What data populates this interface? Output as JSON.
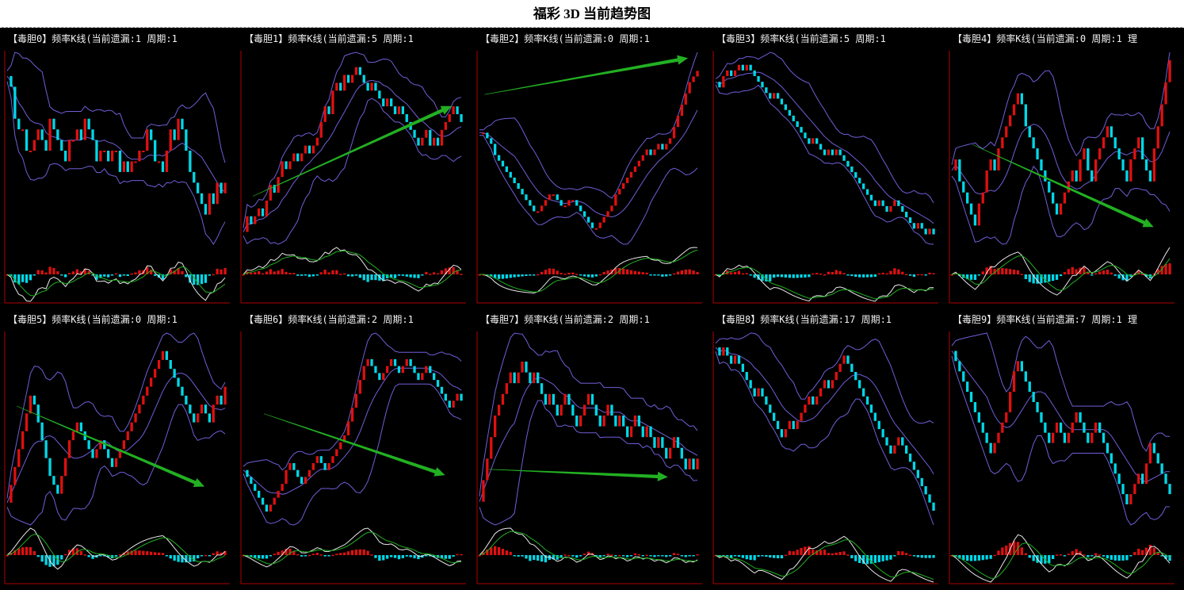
{
  "page_title": "福彩 3D 当前趋势图",
  "colors": {
    "background": "#000000",
    "axis": "#b00000",
    "candle_up": "#e01010",
    "candle_down": "#00d8e8",
    "band": "#6f5fd8",
    "ma_fast": "#e8e8e8",
    "ma_slow": "#20b020",
    "trend_arrow": "#22b022"
  },
  "chart_data": [
    {
      "type": "candlestick",
      "label": "毒胆0",
      "title": "【毒胆0】频率K线(当前遗漏:1 周期:1",
      "current_omission": 1,
      "period": 1,
      "close": [
        17,
        16,
        13,
        12,
        12,
        10,
        10,
        11,
        12,
        11,
        10,
        13,
        12,
        11,
        10,
        9,
        11,
        11,
        12,
        11,
        13,
        12,
        11,
        9,
        10,
        10,
        9,
        10,
        10,
        8,
        9,
        8,
        9,
        9,
        10,
        10,
        12,
        11,
        9,
        9,
        8,
        10,
        12,
        11,
        13,
        12,
        10,
        8,
        7,
        6,
        5,
        4,
        6,
        5,
        7,
        6,
        7
      ],
      "trend": null
    },
    {
      "type": "candlestick",
      "label": "毒胆1",
      "title": "【毒胆1】频率K线(当前遗漏:5 周期:1",
      "current_omission": 5,
      "period": 1,
      "close": [
        6,
        8,
        7,
        8,
        9,
        8,
        10,
        12,
        11,
        13,
        15,
        14,
        15,
        16,
        15,
        16,
        17,
        16,
        17,
        18,
        20,
        22,
        21,
        24,
        25,
        24,
        26,
        25,
        26,
        27,
        26,
        25,
        24,
        25,
        24,
        23,
        22,
        23,
        22,
        21,
        22,
        21,
        20,
        19,
        18,
        17,
        18,
        19,
        17,
        18,
        17,
        19,
        20,
        21,
        22,
        21,
        20
      ],
      "trend": [
        0.05,
        0.25,
        0.95,
        0.72
      ]
    },
    {
      "type": "candlestick",
      "label": "毒胆2",
      "title": "【毒胆2】频率K线(当前遗漏:0 周期:1",
      "current_omission": 0,
      "period": 1,
      "close": [
        20,
        20,
        19,
        18,
        16,
        15,
        14,
        13,
        12,
        11,
        10,
        9,
        8,
        7,
        6,
        6,
        7,
        8,
        9,
        9,
        8,
        7,
        7,
        8,
        8,
        7,
        6,
        5,
        4,
        3,
        3,
        4,
        5,
        6,
        7,
        9,
        10,
        11,
        12,
        13,
        14,
        15,
        16,
        17,
        16,
        17,
        18,
        17,
        18,
        19,
        21,
        23,
        25,
        27,
        29,
        30,
        31
      ],
      "trend": [
        0.03,
        0.78,
        0.95,
        0.97
      ]
    },
    {
      "type": "candlestick",
      "label": "毒胆3",
      "title": "【毒胆3】频率K线(当前遗漏:5 周期:1",
      "current_omission": 5,
      "period": 1,
      "close": [
        30,
        29,
        31,
        32,
        31,
        32,
        33,
        32,
        33,
        32,
        31,
        30,
        29,
        28,
        27,
        28,
        27,
        26,
        25,
        24,
        23,
        22,
        21,
        20,
        19,
        20,
        19,
        18,
        17,
        18,
        17,
        18,
        17,
        16,
        15,
        14,
        13,
        12,
        11,
        10,
        9,
        8,
        9,
        8,
        7,
        8,
        9,
        8,
        7,
        6,
        5,
        4,
        5,
        4,
        3,
        4,
        3
      ],
      "trend": null
    },
    {
      "type": "candlestick",
      "label": "毒胆4",
      "title": "【毒胆4】频率K线(当前遗漏:0 周期:1 理",
      "current_omission": 0,
      "period": 1,
      "close": [
        12,
        13,
        11,
        10,
        9,
        8,
        7,
        9,
        10,
        12,
        13,
        12,
        14,
        15,
        16,
        17,
        18,
        19,
        18,
        16,
        15,
        14,
        13,
        12,
        11,
        10,
        9,
        8,
        9,
        10,
        11,
        12,
        11,
        13,
        14,
        12,
        11,
        13,
        14,
        15,
        16,
        15,
        14,
        13,
        12,
        11,
        13,
        14,
        15,
        13,
        12,
        11,
        14,
        16,
        18,
        20,
        22
      ],
      "trend": [
        0.1,
        0.52,
        0.92,
        0.09
      ]
    },
    {
      "type": "candlestick",
      "label": "毒胆5",
      "title": "【毒胆5】频率K线(当前遗漏:0 周期:1",
      "current_omission": 0,
      "period": 1,
      "close": [
        8,
        10,
        12,
        14,
        16,
        18,
        20,
        19,
        17,
        15,
        13,
        11,
        10,
        9,
        11,
        13,
        15,
        16,
        17,
        16,
        15,
        14,
        13,
        14,
        15,
        14,
        13,
        12,
        13,
        14,
        15,
        16,
        17,
        18,
        19,
        20,
        21,
        22,
        23,
        24,
        25,
        24,
        23,
        22,
        21,
        20,
        19,
        18,
        17,
        18,
        19,
        18,
        17,
        19,
        20,
        19,
        21
      ],
      "trend": [
        0.05,
        0.62,
        0.9,
        0.2
      ]
    },
    {
      "type": "candlestick",
      "label": "毒胆6",
      "title": "【毒胆6】频率K线(当前遗漏:2 周期:1",
      "current_omission": 2,
      "period": 1,
      "close": [
        12,
        11,
        10,
        9,
        8,
        7,
        6,
        7,
        8,
        9,
        10,
        12,
        13,
        12,
        11,
        10,
        11,
        12,
        13,
        14,
        13,
        12,
        13,
        14,
        15,
        16,
        17,
        19,
        21,
        23,
        25,
        27,
        28,
        27,
        26,
        25,
        26,
        27,
        28,
        27,
        26,
        27,
        28,
        27,
        26,
        25,
        26,
        27,
        26,
        25,
        24,
        23,
        22,
        21,
        22,
        23,
        22
      ],
      "trend": [
        0.1,
        0.58,
        0.92,
        0.26
      ]
    },
    {
      "type": "candlestick",
      "label": "毒胆7",
      "title": "【毒胆7】频率K线(当前遗漏:2 周期:1",
      "current_omission": 2,
      "period": 1,
      "close": [
        18,
        20,
        22,
        24,
        26,
        27,
        28,
        29,
        30,
        29,
        30,
        31,
        30,
        29,
        30,
        29,
        28,
        27,
        28,
        27,
        26,
        27,
        28,
        27,
        26,
        25,
        26,
        27,
        28,
        27,
        26,
        25,
        26,
        27,
        26,
        25,
        26,
        25,
        24,
        25,
        26,
        25,
        24,
        25,
        24,
        23,
        24,
        23,
        22,
        23,
        24,
        23,
        22,
        21,
        22,
        21,
        22
      ],
      "trend": [
        0.05,
        0.29,
        0.86,
        0.25
      ]
    },
    {
      "type": "candlestick",
      "label": "毒胆8",
      "title": "【毒胆8】频率K线(当前遗漏:17 周期:1",
      "current_omission": 17,
      "period": 1,
      "close": [
        26,
        25,
        26,
        25,
        24,
        25,
        24,
        23,
        22,
        21,
        20,
        21,
        20,
        19,
        18,
        17,
        16,
        15,
        16,
        17,
        16,
        17,
        18,
        19,
        20,
        19,
        20,
        21,
        22,
        21,
        22,
        23,
        24,
        25,
        24,
        23,
        22,
        21,
        20,
        19,
        18,
        17,
        16,
        15,
        14,
        13,
        14,
        15,
        14,
        13,
        12,
        11,
        10,
        9,
        8,
        7,
        6
      ],
      "trend": null
    },
    {
      "type": "candlestick",
      "label": "毒胆9",
      "title": "【毒胆9】频率K线(当前遗漏:7 周期:1 理",
      "current_omission": 7,
      "period": 1,
      "close": [
        26,
        25,
        24,
        23,
        22,
        21,
        20,
        19,
        18,
        17,
        16,
        17,
        18,
        19,
        20,
        22,
        24,
        25,
        24,
        23,
        22,
        21,
        20,
        19,
        18,
        17,
        18,
        19,
        18,
        17,
        18,
        19,
        20,
        19,
        18,
        17,
        18,
        19,
        18,
        17,
        16,
        15,
        14,
        13,
        12,
        11,
        12,
        13,
        14,
        13,
        15,
        17,
        16,
        15,
        14,
        13,
        12
      ],
      "trend": null
    }
  ]
}
